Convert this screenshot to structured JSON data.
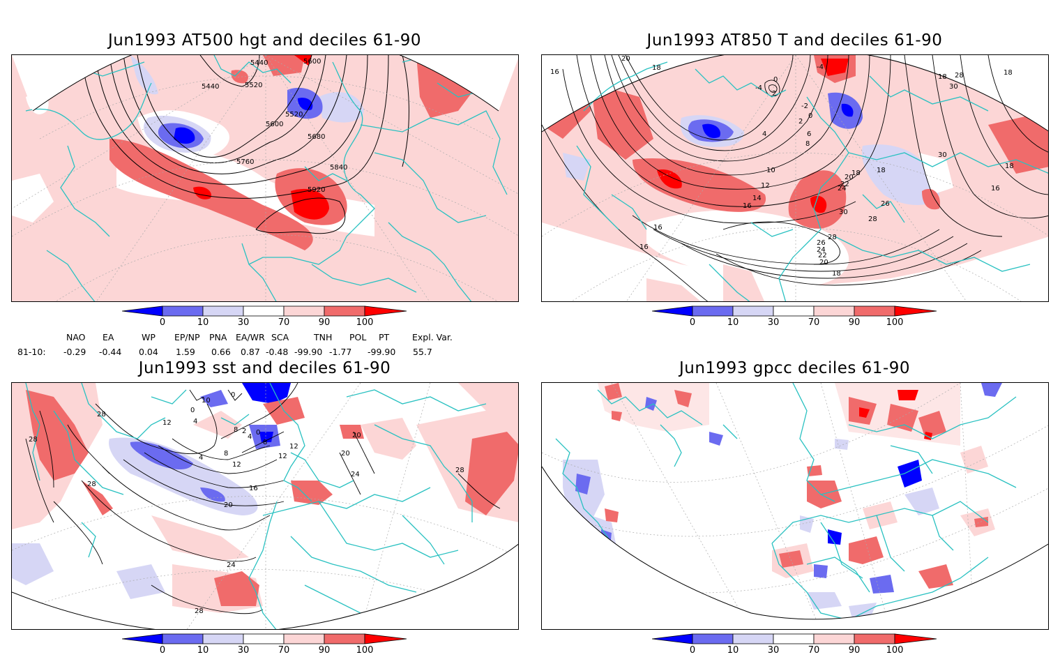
{
  "panels": {
    "tl": {
      "title": "Jun1993 AT500 hgt and deciles 61-90"
    },
    "tr": {
      "title": "Jun1993 AT850 T and deciles 61-90"
    },
    "bl": {
      "title": "Jun1993 sst and deciles 61-90"
    },
    "br": {
      "title": "Jun1993 gpcc deciles 61-90"
    }
  },
  "colorbar": {
    "ticks": [
      "0",
      "10",
      "30",
      "70",
      "90",
      "100"
    ],
    "colors": [
      "#0000ff",
      "#6b6bf0",
      "#d6d6f5",
      "#ffffff",
      "#fcd6d6",
      "#f06b6b",
      "#ff0000"
    ]
  },
  "indices": {
    "headers": [
      "NAO",
      "EA",
      "WP",
      "EP/NP",
      "PNA",
      "EA/WR",
      "SCA",
      "TNH",
      "POL",
      "PT",
      "Expl. Var."
    ],
    "row_label": "81-10:",
    "values": [
      "-0.29",
      "-0.44",
      "0.04",
      "1.59",
      "0.66",
      "0.87",
      "-0.48",
      "-99.90",
      "-1.77",
      "-99.90",
      "55.7"
    ]
  },
  "contour_labels": {
    "tl": [
      "5440",
      "5600",
      "5440",
      "5520",
      "5520",
      "5600",
      "5680",
      "5760",
      "5840",
      "5920"
    ],
    "tr": [
      "16",
      "20",
      "18",
      "-4",
      "0",
      "2",
      "-4",
      "-2",
      "0",
      "2",
      "4",
      "6",
      "8",
      "10",
      "12",
      "14",
      "16",
      "18",
      "20",
      "22",
      "24",
      "18",
      "26",
      "28",
      "30",
      "18",
      "28",
      "30",
      "18",
      "18",
      "16",
      "30",
      "16",
      "16",
      "28",
      "26",
      "24",
      "22",
      "20",
      "18"
    ],
    "bl": [
      "28",
      "28",
      "28",
      "12",
      "0",
      "10",
      "0",
      "4",
      "8",
      "2",
      "4",
      "0",
      "8",
      "12",
      "4",
      "8",
      "12",
      "16",
      "20",
      "24",
      "28",
      "20",
      "20",
      "24",
      "28",
      "12"
    ]
  }
}
